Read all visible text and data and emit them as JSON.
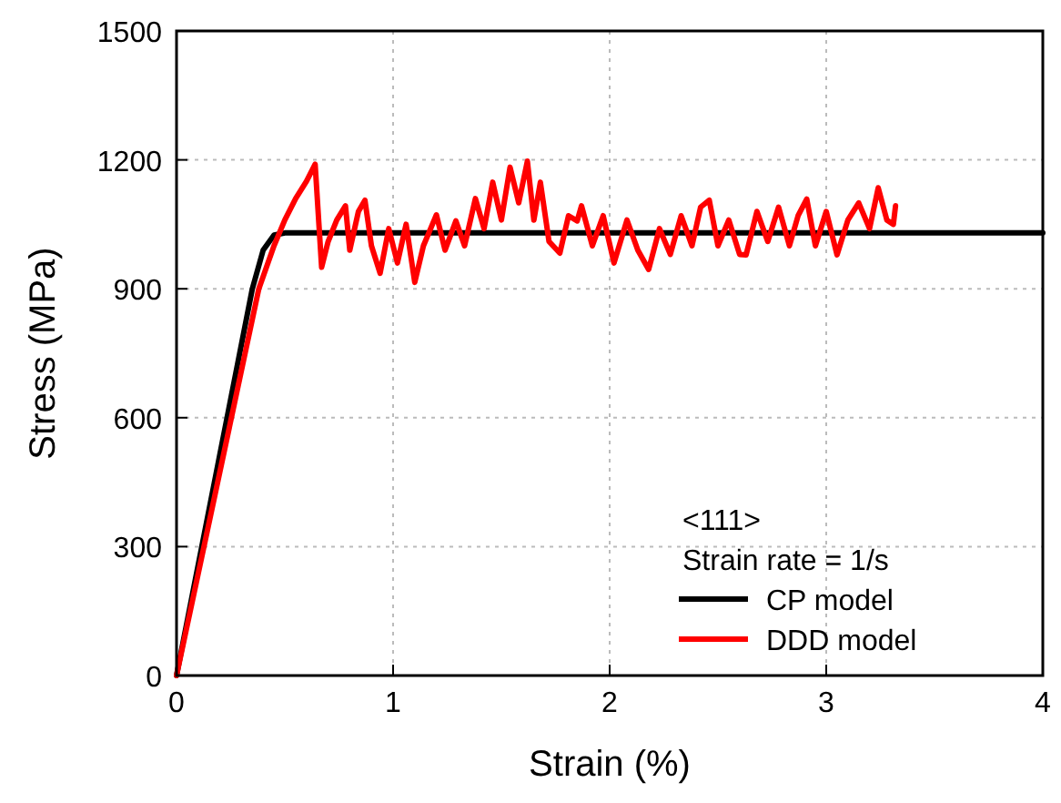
{
  "chart_data": {
    "type": "line",
    "xlabel": "Strain (%)",
    "ylabel": "Stress (MPa)",
    "xlim": [
      0,
      4
    ],
    "ylim": [
      0,
      1500
    ],
    "xticks": [
      0,
      1,
      2,
      3,
      4
    ],
    "yticks": [
      0,
      300,
      600,
      900,
      1200,
      1500
    ],
    "grid": true,
    "legend": "bottom right",
    "line_style": "solid",
    "marker": "none",
    "annotations": [
      "<111>",
      "Strain rate = 1/s"
    ],
    "series": [
      {
        "name": "CP model",
        "color": "#000000",
        "x": [
          0,
          0.35,
          0.4,
          0.45,
          0.5,
          4
        ],
        "values": [
          0,
          900,
          990,
          1025,
          1030,
          1030
        ]
      },
      {
        "name": "DDD model",
        "color": "#ff0000",
        "x": [
          0,
          0.38,
          0.45,
          0.5,
          0.55,
          0.6,
          0.64,
          0.67,
          0.7,
          0.74,
          0.78,
          0.8,
          0.84,
          0.87,
          0.9,
          0.94,
          0.98,
          1.02,
          1.06,
          1.1,
          1.14,
          1.2,
          1.24,
          1.29,
          1.33,
          1.38,
          1.42,
          1.46,
          1.5,
          1.54,
          1.58,
          1.62,
          1.65,
          1.68,
          1.72,
          1.77,
          1.81,
          1.85,
          1.87,
          1.92,
          1.97,
          2.02,
          2.08,
          2.13,
          2.18,
          2.23,
          2.28,
          2.33,
          2.38,
          2.42,
          2.46,
          2.5,
          2.55,
          2.6,
          2.63,
          2.68,
          2.73,
          2.78,
          2.83,
          2.87,
          2.91,
          2.95,
          3.0,
          3.05,
          3.1,
          3.15,
          3.2,
          3.24,
          3.28,
          3.31,
          3.32
        ],
        "values": [
          0,
          900,
          1000,
          1060,
          1110,
          1150,
          1190,
          950,
          1010,
          1060,
          1093,
          990,
          1080,
          1106,
          1000,
          936,
          1040,
          960,
          1050,
          915,
          1000,
          1072,
          990,
          1058,
          1000,
          1110,
          1040,
          1148,
          1060,
          1183,
          1100,
          1197,
          1060,
          1148,
          1010,
          983,
          1070,
          1058,
          1093,
          1000,
          1070,
          960,
          1060,
          990,
          945,
          1040,
          980,
          1070,
          1000,
          1090,
          1106,
          1000,
          1060,
          980,
          979,
          1080,
          1010,
          1090,
          1000,
          1070,
          1109,
          1000,
          1080,
          979,
          1060,
          1100,
          1040,
          1135,
          1060,
          1050,
          1093
        ]
      }
    ]
  }
}
